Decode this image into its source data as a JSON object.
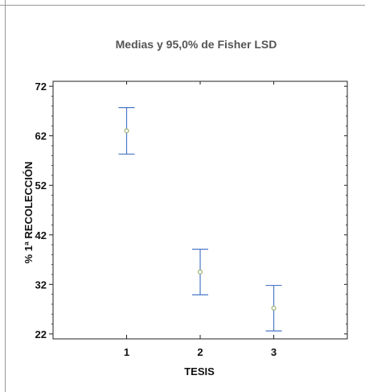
{
  "chart_data": {
    "type": "scatter",
    "title": "Medias y 95,0% de Fisher LSD",
    "xlabel": "TESIS",
    "ylabel": "% 1ª RECOLECCIÓN",
    "categories": [
      "1",
      "2",
      "3"
    ],
    "x": [
      1,
      2,
      3
    ],
    "means": [
      63.0,
      34.5,
      27.2
    ],
    "lower": [
      58.3,
      29.9,
      22.6
    ],
    "upper": [
      67.7,
      39.1,
      31.8
    ],
    "ylim": [
      21,
      73
    ],
    "xlim": [
      0,
      4
    ],
    "yticks": [
      22,
      32,
      42,
      52,
      62,
      72
    ],
    "grid": false,
    "colors": {
      "errorbar": "#4a78c8",
      "point": "#9ab070",
      "axis": "#222222"
    }
  }
}
